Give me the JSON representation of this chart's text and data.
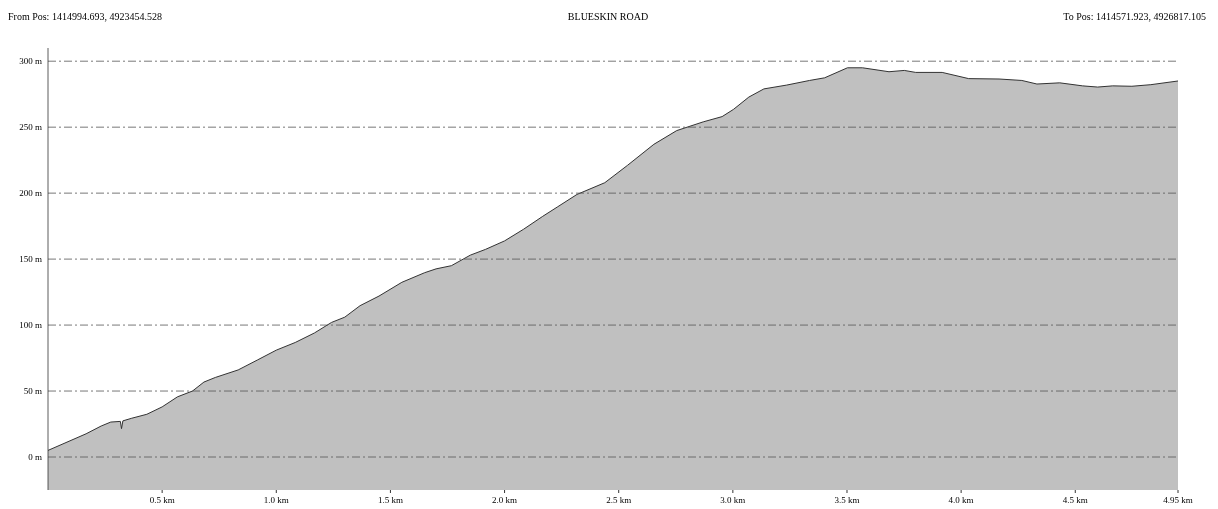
{
  "chart_data": {
    "type": "area",
    "title": "BLUESKIN ROAD",
    "annotations": [
      "From Pos: 1414994.693, 4923454.528",
      "To Pos: 1414571.923, 4926817.105"
    ],
    "x": [
      0,
      0.167,
      0.233,
      0.275,
      0.317,
      0.322,
      0.328,
      0.367,
      0.433,
      0.5,
      0.567,
      0.633,
      0.683,
      0.733,
      0.833,
      0.917,
      1.0,
      1.083,
      1.167,
      1.242,
      1.3,
      1.367,
      1.45,
      1.55,
      1.65,
      1.7,
      1.767,
      1.85,
      1.917,
      2.0,
      2.083,
      2.167,
      2.233,
      2.317,
      2.383,
      2.439,
      2.538,
      2.654,
      2.754,
      2.87,
      2.953,
      3.003,
      3.07,
      3.136,
      3.236,
      3.336,
      3.402,
      3.502,
      3.568,
      3.684,
      3.751,
      3.801,
      3.917,
      4.033,
      4.166,
      4.266,
      4.332,
      4.432,
      4.532,
      4.598,
      4.664,
      4.748,
      4.831,
      4.95
    ],
    "values": [
      5,
      17.6,
      23.5,
      26.5,
      27,
      21.5,
      27.4,
      29.4,
      32.4,
      38,
      45.6,
      50,
      56.8,
      60.3,
      66,
      73.5,
      81,
      86.8,
      94,
      102,
      106,
      114.7,
      122,
      132.4,
      139.7,
      142.6,
      145,
      153,
      157.4,
      163.8,
      172.6,
      182.4,
      189.7,
      199,
      203.8,
      207.9,
      221,
      237,
      247.4,
      254,
      258,
      263.5,
      272.8,
      279,
      281.9,
      285.4,
      287.4,
      295,
      295,
      292,
      293,
      291.5,
      291.5,
      286.8,
      286.5,
      285.4,
      282.7,
      283.6,
      281.3,
      280.4,
      281.3,
      281,
      282.2,
      285
    ],
    "color": "#c0c0c0",
    "xlim": [
      0,
      4.95
    ],
    "ylim": [
      -25,
      310
    ],
    "xticks": [
      {
        "value": 0.5,
        "label": "0.5 km"
      },
      {
        "value": 1,
        "label": "1.0 km"
      },
      {
        "value": 1.5,
        "label": "1.5 km"
      },
      {
        "value": 2,
        "label": "2.0 km"
      },
      {
        "value": 2.5,
        "label": "2.5 km"
      },
      {
        "value": 3,
        "label": "3.0 km"
      },
      {
        "value": 3.5,
        "label": "3.5 km"
      },
      {
        "value": 4,
        "label": "4.0 km"
      },
      {
        "value": 4.5,
        "label": "4.5 km"
      },
      {
        "value": 4.95,
        "label": "4.95 km"
      }
    ],
    "yticks": [
      {
        "value": 0,
        "label": "0 m"
      },
      {
        "value": 50,
        "label": "50 m"
      },
      {
        "value": 100,
        "label": "100 m"
      },
      {
        "value": 150,
        "label": "150 m"
      },
      {
        "value": 200,
        "label": "200 m"
      },
      {
        "value": 250,
        "label": "250 m"
      },
      {
        "value": 300,
        "label": "300 m"
      }
    ],
    "grid": "y"
  }
}
